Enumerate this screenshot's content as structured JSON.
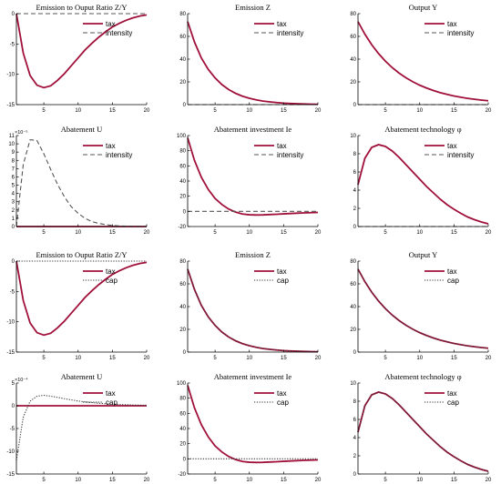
{
  "colors": {
    "tax": "#a0103a",
    "intensity": "#555555",
    "cap": "#333333",
    "axis": "#000000"
  },
  "chart_data": [
    {
      "type": "line",
      "title": "Emission to Ouput Ratio Z/Y",
      "xlim": [
        1,
        20
      ],
      "ylim": [
        -15,
        0
      ],
      "xticks": [
        5,
        10,
        15,
        20
      ],
      "yticks": [
        -15,
        -10,
        -5,
        0
      ],
      "exponent": "",
      "legend": "top-right",
      "x": [
        1,
        2,
        3,
        4,
        5,
        6,
        7,
        8,
        9,
        10,
        11,
        12,
        13,
        14,
        15,
        16,
        17,
        18,
        19,
        20
      ],
      "series": [
        {
          "name": "tax",
          "style": "tax",
          "values": [
            0,
            -6.5,
            -10.2,
            -11.8,
            -12.2,
            -11.9,
            -11.0,
            -9.9,
            -8.6,
            -7.3,
            -6.0,
            -4.9,
            -3.9,
            -3.0,
            -2.2,
            -1.6,
            -1.1,
            -0.7,
            -0.4,
            -0.2
          ]
        },
        {
          "name": "intensity",
          "style": "intensity",
          "values": [
            0,
            0,
            0,
            0,
            0,
            0,
            0,
            0,
            0,
            0,
            0,
            0,
            0,
            0,
            0,
            0,
            0,
            0,
            0,
            0
          ]
        }
      ]
    },
    {
      "type": "line",
      "title": "Emission Z",
      "xlim": [
        1,
        20
      ],
      "ylim": [
        0,
        80
      ],
      "xticks": [
        5,
        10,
        15,
        20
      ],
      "yticks": [
        0,
        20,
        40,
        60,
        80
      ],
      "exponent": "",
      "legend": "top-right",
      "x": [
        1,
        2,
        3,
        4,
        5,
        6,
        7,
        8,
        9,
        10,
        11,
        12,
        13,
        14,
        15,
        16,
        17,
        18,
        19,
        20
      ],
      "series": [
        {
          "name": "tax",
          "style": "tax",
          "values": [
            73,
            55,
            41,
            31,
            23.5,
            17.6,
            13.2,
            9.9,
            7.4,
            5.6,
            4.2,
            3.1,
            2.4,
            1.8,
            1.3,
            1.0,
            0.75,
            0.56,
            0.42,
            0.32
          ]
        },
        {
          "name": "intensity",
          "style": "intensity",
          "values": [
            0,
            0,
            0,
            0,
            0,
            0,
            0,
            0,
            0,
            0,
            0,
            0,
            0,
            0,
            0,
            0,
            0,
            0,
            0,
            0
          ]
        }
      ]
    },
    {
      "type": "line",
      "title": "Output Y",
      "xlim": [
        1,
        20
      ],
      "ylim": [
        0,
        80
      ],
      "xticks": [
        5,
        10,
        15,
        20
      ],
      "yticks": [
        0,
        20,
        40,
        60,
        80
      ],
      "exponent": "",
      "legend": "top-right",
      "x": [
        1,
        2,
        3,
        4,
        5,
        6,
        7,
        8,
        9,
        10,
        11,
        12,
        13,
        14,
        15,
        16,
        17,
        18,
        19,
        20
      ],
      "series": [
        {
          "name": "tax",
          "style": "tax",
          "values": [
            73,
            62,
            52.7,
            44.9,
            38.2,
            32.5,
            27.7,
            23.6,
            20.1,
            17.1,
            14.6,
            12.4,
            10.5,
            9.0,
            7.6,
            6.5,
            5.5,
            4.7,
            4.0,
            3.4
          ]
        },
        {
          "name": "intensity",
          "style": "intensity",
          "values": [
            0,
            0,
            0,
            0,
            0,
            0,
            0,
            0,
            0,
            0,
            0,
            0,
            0,
            0,
            0,
            0,
            0,
            0,
            0,
            0
          ]
        }
      ]
    },
    {
      "type": "line",
      "title": "Abatement U",
      "xlim": [
        1,
        20
      ],
      "ylim": [
        0,
        11
      ],
      "xticks": [
        5,
        10,
        15,
        20
      ],
      "yticks": [
        0,
        1,
        2,
        3,
        4,
        5,
        6,
        7,
        8,
        9,
        10,
        11
      ],
      "exponent": "×10⁻⁵",
      "legend": "top-right",
      "x": [
        1,
        2,
        3,
        4,
        5,
        6,
        7,
        8,
        9,
        10,
        11,
        12,
        13,
        14,
        15,
        16,
        17,
        18,
        19,
        20
      ],
      "series": [
        {
          "name": "tax",
          "style": "tax",
          "values": [
            0,
            0,
            0,
            0,
            0,
            0,
            0,
            0,
            0,
            0,
            0,
            0,
            0,
            0,
            0,
            0,
            0,
            0,
            0,
            0
          ]
        },
        {
          "name": "intensity",
          "style": "intensity",
          "values": [
            0,
            7.5,
            10.5,
            10.4,
            8.8,
            6.9,
            5.1,
            3.6,
            2.4,
            1.6,
            1.0,
            0.6,
            0.38,
            0.23,
            0.14,
            0.08,
            0.05,
            0.03,
            0.02,
            0.01
          ]
        }
      ]
    },
    {
      "type": "line",
      "title": "Abatement investment Ie",
      "xlim": [
        1,
        20
      ],
      "ylim": [
        -20,
        100
      ],
      "xticks": [
        5,
        10,
        15,
        20
      ],
      "yticks": [
        -20,
        0,
        20,
        40,
        60,
        80,
        100
      ],
      "exponent": "",
      "legend": "top-right",
      "x": [
        1,
        2,
        3,
        4,
        5,
        6,
        7,
        8,
        9,
        10,
        11,
        12,
        13,
        14,
        15,
        16,
        17,
        18,
        19,
        20
      ],
      "series": [
        {
          "name": "tax",
          "style": "tax",
          "values": [
            97,
            67,
            45,
            29,
            17,
            9,
            3,
            -1,
            -3.5,
            -4.5,
            -4.8,
            -4.6,
            -4.2,
            -3.8,
            -3.3,
            -2.8,
            -2.4,
            -2.0,
            -1.7,
            -1.4
          ]
        },
        {
          "name": "intensity",
          "style": "intensity",
          "values": [
            0,
            0,
            0,
            0,
            0,
            0,
            0,
            0,
            0,
            0,
            0,
            0,
            0,
            0,
            0,
            0,
            0,
            0,
            0,
            0
          ]
        }
      ]
    },
    {
      "type": "line",
      "title": "Abatement technology φ",
      "xlim": [
        1,
        20
      ],
      "ylim": [
        0,
        10
      ],
      "xticks": [
        5,
        10,
        15,
        20
      ],
      "yticks": [
        0,
        2,
        4,
        6,
        8,
        10
      ],
      "exponent": "",
      "legend": "top-right",
      "x": [
        1,
        2,
        3,
        4,
        5,
        6,
        7,
        8,
        9,
        10,
        11,
        12,
        13,
        14,
        15,
        16,
        17,
        18,
        19,
        20
      ],
      "series": [
        {
          "name": "tax",
          "style": "tax",
          "values": [
            4.6,
            7.5,
            8.7,
            9.0,
            8.8,
            8.3,
            7.6,
            6.8,
            6.0,
            5.2,
            4.4,
            3.7,
            3.0,
            2.4,
            1.9,
            1.45,
            1.05,
            0.75,
            0.5,
            0.3
          ]
        },
        {
          "name": "intensity",
          "style": "intensity",
          "values": [
            0,
            0,
            0,
            0,
            0,
            0,
            0,
            0,
            0,
            0,
            0,
            0,
            0,
            0,
            0,
            0,
            0,
            0,
            0,
            0
          ]
        }
      ]
    },
    {
      "type": "line",
      "title": "Emission to Ouput Ratio Z/Y",
      "xlim": [
        1,
        20
      ],
      "ylim": [
        -15,
        0
      ],
      "xticks": [
        5,
        10,
        15,
        20
      ],
      "yticks": [
        -15,
        -10,
        -5,
        0
      ],
      "exponent": "",
      "legend": "top-right",
      "x": [
        1,
        2,
        3,
        4,
        5,
        6,
        7,
        8,
        9,
        10,
        11,
        12,
        13,
        14,
        15,
        16,
        17,
        18,
        19,
        20
      ],
      "series": [
        {
          "name": "tax",
          "style": "tax",
          "values": [
            0,
            -6.5,
            -10.2,
            -11.8,
            -12.2,
            -11.9,
            -11.0,
            -9.9,
            -8.6,
            -7.3,
            -6.0,
            -4.9,
            -3.9,
            -3.0,
            -2.2,
            -1.6,
            -1.1,
            -0.7,
            -0.4,
            -0.2
          ]
        },
        {
          "name": "cap",
          "style": "cap",
          "values": [
            0,
            0,
            0,
            0,
            0,
            0,
            0,
            0,
            0,
            0,
            0,
            0,
            0,
            0,
            0,
            0,
            0,
            0,
            0,
            0
          ]
        }
      ]
    },
    {
      "type": "line",
      "title": "Emission Z",
      "xlim": [
        1,
        20
      ],
      "ylim": [
        0,
        80
      ],
      "xticks": [
        5,
        10,
        15,
        20
      ],
      "yticks": [
        0,
        20,
        40,
        60,
        80
      ],
      "exponent": "",
      "legend": "top-right",
      "x": [
        1,
        2,
        3,
        4,
        5,
        6,
        7,
        8,
        9,
        10,
        11,
        12,
        13,
        14,
        15,
        16,
        17,
        18,
        19,
        20
      ],
      "series": [
        {
          "name": "tax",
          "style": "tax",
          "values": [
            73,
            55,
            41,
            31,
            23.5,
            17.6,
            13.2,
            9.9,
            7.4,
            5.6,
            4.2,
            3.1,
            2.4,
            1.8,
            1.3,
            1.0,
            0.75,
            0.56,
            0.42,
            0.32
          ]
        },
        {
          "name": "cap",
          "style": "cap",
          "values": [
            73,
            55,
            41,
            31,
            23.5,
            17.6,
            13.2,
            9.9,
            7.4,
            5.6,
            4.2,
            3.1,
            2.4,
            1.8,
            1.3,
            1.0,
            0.75,
            0.56,
            0.42,
            0.32
          ]
        }
      ]
    },
    {
      "type": "line",
      "title": "Output Y",
      "xlim": [
        1,
        20
      ],
      "ylim": [
        0,
        80
      ],
      "xticks": [
        5,
        10,
        15,
        20
      ],
      "yticks": [
        0,
        20,
        40,
        60,
        80
      ],
      "exponent": "",
      "legend": "top-right",
      "x": [
        1,
        2,
        3,
        4,
        5,
        6,
        7,
        8,
        9,
        10,
        11,
        12,
        13,
        14,
        15,
        16,
        17,
        18,
        19,
        20
      ],
      "series": [
        {
          "name": "tax",
          "style": "tax",
          "values": [
            73,
            62,
            52.7,
            44.9,
            38.2,
            32.5,
            27.7,
            23.6,
            20.1,
            17.1,
            14.6,
            12.4,
            10.5,
            9.0,
            7.6,
            6.5,
            5.5,
            4.7,
            4.0,
            3.4
          ]
        },
        {
          "name": "cap",
          "style": "cap",
          "values": [
            73,
            62,
            52.7,
            44.9,
            38.2,
            32.5,
            27.7,
            23.6,
            20.1,
            17.1,
            14.6,
            12.4,
            10.5,
            9.0,
            7.6,
            6.5,
            5.5,
            4.7,
            4.0,
            3.4
          ]
        }
      ]
    },
    {
      "type": "line",
      "title": "Abatement U",
      "xlim": [
        1,
        20
      ],
      "ylim": [
        -15,
        5
      ],
      "xticks": [
        5,
        10,
        15,
        20
      ],
      "yticks": [
        -15,
        -10,
        -5,
        0,
        5
      ],
      "exponent": "×10⁻⁴",
      "legend": "top-right",
      "x": [
        1,
        2,
        3,
        4,
        5,
        6,
        7,
        8,
        9,
        10,
        11,
        12,
        13,
        14,
        15,
        16,
        17,
        18,
        19,
        20
      ],
      "series": [
        {
          "name": "tax",
          "style": "tax",
          "values": [
            0,
            0,
            0,
            0,
            0,
            0,
            0,
            0,
            0,
            0,
            0,
            0,
            0,
            0,
            0,
            0,
            0,
            0,
            0,
            0
          ]
        },
        {
          "name": "cap",
          "style": "cap",
          "values": [
            -12,
            -2.5,
            1.0,
            2.1,
            2.3,
            2.1,
            1.85,
            1.55,
            1.3,
            1.05,
            0.85,
            0.7,
            0.55,
            0.45,
            0.35,
            0.28,
            0.22,
            0.17,
            0.13,
            0.1
          ]
        }
      ]
    },
    {
      "type": "line",
      "title": "Abatement investment Ie",
      "xlim": [
        1,
        20
      ],
      "ylim": [
        -20,
        100
      ],
      "xticks": [
        5,
        10,
        15,
        20
      ],
      "yticks": [
        -20,
        0,
        20,
        40,
        60,
        80,
        100
      ],
      "exponent": "",
      "legend": "top-right",
      "x": [
        1,
        2,
        3,
        4,
        5,
        6,
        7,
        8,
        9,
        10,
        11,
        12,
        13,
        14,
        15,
        16,
        17,
        18,
        19,
        20
      ],
      "series": [
        {
          "name": "tax",
          "style": "tax",
          "values": [
            97,
            67,
            45,
            29,
            17,
            9,
            3,
            -1,
            -3.5,
            -4.5,
            -4.8,
            -4.6,
            -4.2,
            -3.8,
            -3.3,
            -2.8,
            -2.4,
            -2.0,
            -1.7,
            -1.4
          ]
        },
        {
          "name": "cap",
          "style": "cap",
          "values": [
            0,
            0,
            0,
            0,
            0,
            0,
            0,
            0,
            0,
            0,
            0,
            0,
            0,
            0,
            0,
            0,
            0,
            0,
            0,
            0
          ]
        }
      ]
    },
    {
      "type": "line",
      "title": "Abatement technology φ",
      "xlim": [
        1,
        20
      ],
      "ylim": [
        0,
        10
      ],
      "xticks": [
        5,
        10,
        15,
        20
      ],
      "yticks": [
        0,
        2,
        4,
        6,
        8,
        10
      ],
      "exponent": "",
      "legend": "top-right",
      "x": [
        1,
        2,
        3,
        4,
        5,
        6,
        7,
        8,
        9,
        10,
        11,
        12,
        13,
        14,
        15,
        16,
        17,
        18,
        19,
        20
      ],
      "series": [
        {
          "name": "tax",
          "style": "tax",
          "values": [
            4.6,
            7.5,
            8.7,
            9.0,
            8.8,
            8.3,
            7.6,
            6.8,
            6.0,
            5.2,
            4.4,
            3.7,
            3.0,
            2.4,
            1.9,
            1.45,
            1.05,
            0.75,
            0.5,
            0.3
          ]
        },
        {
          "name": "cap",
          "style": "cap",
          "values": [
            4.6,
            7.5,
            8.7,
            9.0,
            8.8,
            8.3,
            7.6,
            6.8,
            6.0,
            5.2,
            4.4,
            3.7,
            3.0,
            2.4,
            1.9,
            1.45,
            1.05,
            0.75,
            0.5,
            0.3
          ]
        }
      ]
    }
  ]
}
